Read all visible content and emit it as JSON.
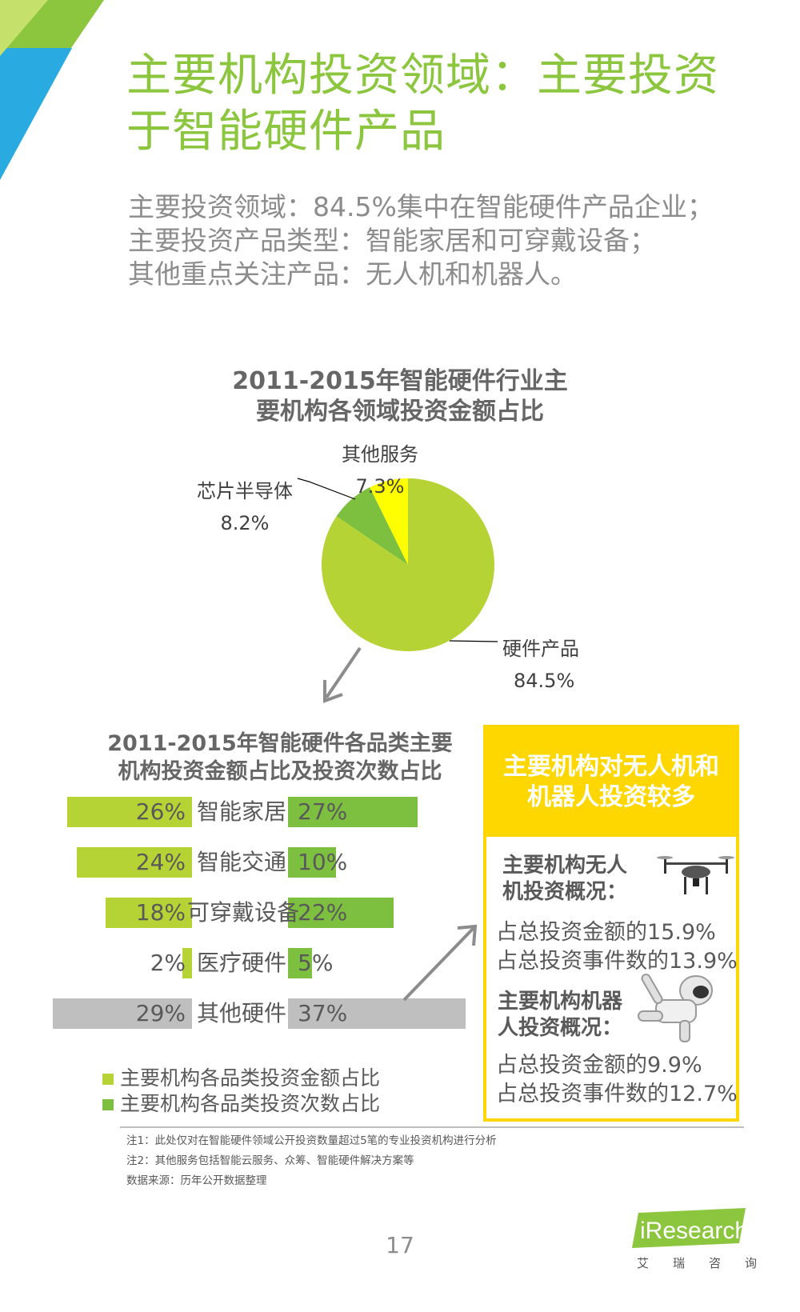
{
  "title": {
    "line1": "主要机构投资领域：主要投资",
    "line2": "于智能硬件产品"
  },
  "summary": [
    "主要投资领域：84.5%集中在智能硬件产品企业；",
    "主要投资产品类型：智能家居和可穿戴设备；",
    "其他重点关注产品：无人机和机器人。"
  ],
  "colors": {
    "green_title": "#8cc63f",
    "pie_main": "#b5d334",
    "pie_chip": "#7dbf3f",
    "pie_other": "#ffff00",
    "bar_amount": "#b5d334",
    "bar_count": "#7dbf3f",
    "bar_other": "#bfbfbf",
    "box_yellow": "#ffd700"
  },
  "chart_data": [
    {
      "type": "pie",
      "title_line1": "2011-2015年智能硬件行业主",
      "title_line2": "要机构各领域投资金额占比",
      "slices": [
        {
          "name": "硬件产品",
          "value": 84.5,
          "label": "84.5%"
        },
        {
          "name": "芯片半导体",
          "value": 8.2,
          "label": "8.2%"
        },
        {
          "name": "其他服务",
          "value": 7.3,
          "label": "7.3%"
        }
      ]
    },
    {
      "type": "bar",
      "title_line1": "2011-2015年智能硬件各品类主要",
      "title_line2": "机构投资金额占比及投资次数占比",
      "categories": [
        "智能家居",
        "智能交通",
        "可穿戴设备",
        "医疗硬件",
        "其他硬件"
      ],
      "series": [
        {
          "name": "主要机构各品类投资金额占比",
          "values": [
            26,
            24,
            18,
            2,
            29
          ],
          "labels": [
            "26%",
            "24%",
            "18%",
            "2%",
            "29%"
          ]
        },
        {
          "name": "主要机构各品类投资次数占比",
          "values": [
            27,
            10,
            22,
            5,
            37
          ],
          "labels": [
            "27%",
            "10%",
            "22%",
            "5%",
            "37%"
          ]
        }
      ]
    }
  ],
  "side_box": {
    "header_line1": "主要机构对无人机和",
    "header_line2": "机器人投资较多",
    "drone_title_line1": "主要机构无人",
    "drone_title_line2": "机投资概况：",
    "drone_line1": "占总投资金额的15.9%",
    "drone_line2": "占总投资事件数的13.9%",
    "robot_title_line1": "主要机构机器",
    "robot_title_line2": "人投资概况：",
    "robot_line1": "占总投资金额的9.9%",
    "robot_line2": "占总投资事件数的12.7%",
    "drone_icon": "drone-icon",
    "robot_icon": "robot-icon"
  },
  "notes": [
    "注1：此处仅对在智能硬件领域公开投资数量超过5笔的专业投资机构进行分析",
    "注2：其他服务包括智能云服务、众筹、智能硬件解决方案等",
    "数据来源：历年公开数据整理"
  ],
  "page_number": "17",
  "logo": {
    "text": "iResearch",
    "sub": "艾瑞咨询"
  }
}
